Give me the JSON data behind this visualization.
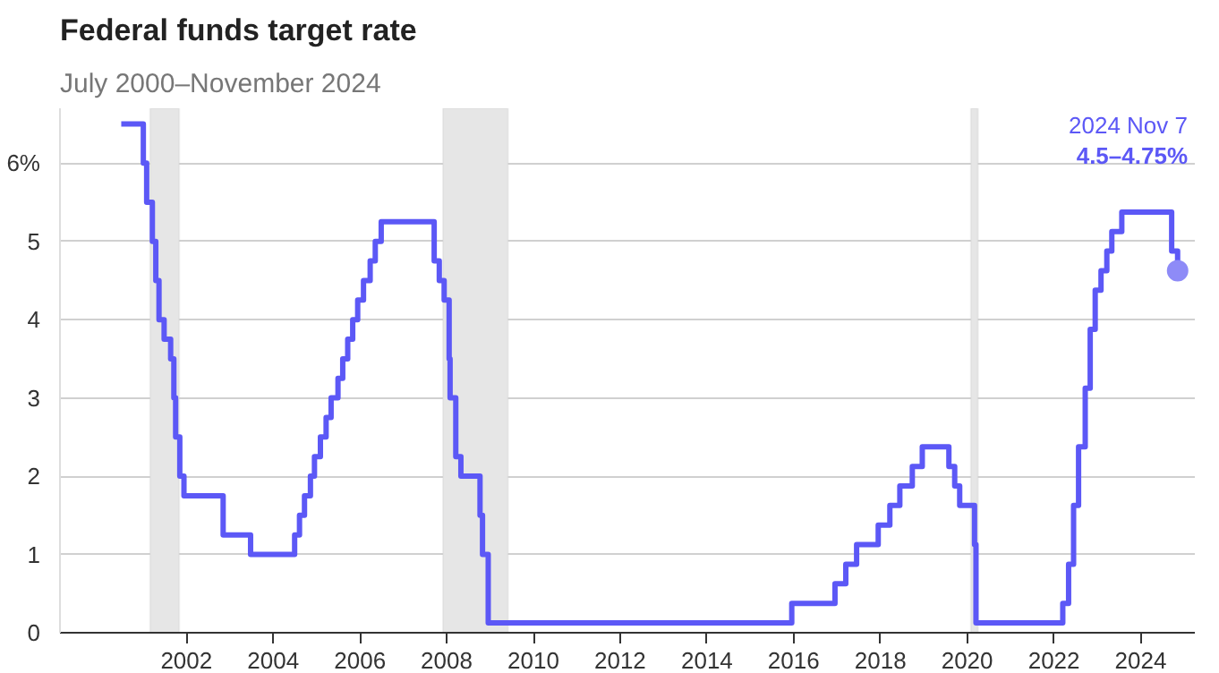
{
  "chart_data": {
    "type": "step",
    "title": "Federal funds target rate",
    "subtitle": "July 2000–November 2024",
    "x": [
      "2000-07-01",
      "2001-01-03",
      "2001-01-31",
      "2001-03-20",
      "2001-04-18",
      "2001-05-15",
      "2001-06-27",
      "2001-08-21",
      "2001-09-17",
      "2001-10-02",
      "2001-11-06",
      "2001-12-11",
      "2002-11-06",
      "2003-06-25",
      "2004-06-30",
      "2004-08-10",
      "2004-09-21",
      "2004-11-10",
      "2004-12-14",
      "2005-02-02",
      "2005-03-22",
      "2005-05-03",
      "2005-06-30",
      "2005-08-09",
      "2005-09-20",
      "2005-11-01",
      "2005-12-13",
      "2006-01-31",
      "2006-03-28",
      "2006-05-10",
      "2006-06-29",
      "2007-09-18",
      "2007-10-31",
      "2007-12-11",
      "2008-01-22",
      "2008-01-30",
      "2008-03-18",
      "2008-04-30",
      "2008-10-08",
      "2008-10-29",
      "2008-12-16",
      "2015-12-16",
      "2016-12-14",
      "2017-03-15",
      "2017-06-14",
      "2017-12-13",
      "2018-03-21",
      "2018-06-13",
      "2018-09-26",
      "2018-12-19",
      "2019-07-31",
      "2019-09-18",
      "2019-10-30",
      "2020-03-03",
      "2020-03-15",
      "2022-03-16",
      "2022-05-04",
      "2022-06-15",
      "2022-07-27",
      "2022-09-21",
      "2022-11-02",
      "2022-12-14",
      "2023-02-01",
      "2023-03-22",
      "2023-05-03",
      "2023-07-26",
      "2024-09-18",
      "2024-11-07"
    ],
    "series": [
      {
        "color": "#5c58f6",
        "values": [
          6.5,
          6.0,
          5.5,
          5.0,
          4.5,
          4.0,
          3.75,
          3.5,
          3.0,
          2.5,
          2.0,
          1.75,
          1.25,
          1.0,
          1.25,
          1.5,
          1.75,
          2.0,
          2.25,
          2.5,
          2.75,
          3.0,
          3.25,
          3.5,
          3.75,
          4.0,
          4.25,
          4.5,
          4.75,
          5.0,
          5.25,
          4.75,
          4.5,
          4.25,
          3.5,
          3.0,
          2.25,
          2.0,
          1.5,
          1.0,
          0.125,
          0.375,
          0.625,
          0.875,
          1.125,
          1.375,
          1.625,
          1.875,
          2.125,
          2.375,
          2.125,
          1.875,
          1.625,
          1.125,
          0.125,
          0.375,
          0.875,
          1.625,
          2.375,
          3.125,
          3.875,
          4.375,
          4.625,
          4.875,
          5.125,
          5.375,
          4.875,
          4.625
        ]
      },
      {
        "type": "scatter",
        "marker": "circle",
        "color": "#8e8bf7",
        "x": [
          "2024-11-07"
        ],
        "values": [
          4.625
        ]
      }
    ],
    "xlim": [
      "1999-02-01",
      "2025-04-01"
    ],
    "xticks": [
      "2002",
      "2004",
      "2006",
      "2008",
      "2010",
      "2012",
      "2014",
      "2016",
      "2018",
      "2020",
      "2022",
      "2024"
    ],
    "ylim": [
      0,
      6.7
    ],
    "yticks": [
      0,
      1,
      2,
      3,
      4,
      5,
      {
        "value": 6,
        "label": "6%"
      }
    ],
    "bands": [
      {
        "axis": "x",
        "from": "2001-03-01",
        "to": "2001-11-01",
        "color": "#e6e6e6"
      },
      {
        "axis": "x",
        "from": "2007-12-01",
        "to": "2009-06-01",
        "color": "#e6e6e6"
      },
      {
        "axis": "x",
        "from": "2020-02-01",
        "to": "2020-04-01",
        "color": "#e6e6e6"
      }
    ],
    "annotations": [
      "2024 Nov 7",
      "4.5–4.75%"
    ],
    "grid": "y",
    "marker": "none",
    "line_style": "solid"
  }
}
